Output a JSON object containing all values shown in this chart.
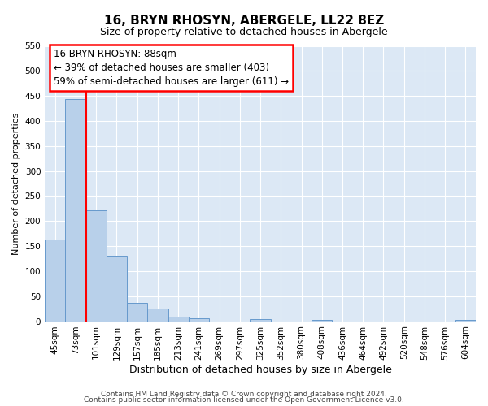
{
  "title": "16, BRYN RHOSYN, ABERGELE, LL22 8EZ",
  "subtitle": "Size of property relative to detached houses in Abergele",
  "xlabel": "Distribution of detached houses by size in Abergele",
  "ylabel": "Number of detached properties",
  "bins": [
    "45sqm",
    "73sqm",
    "101sqm",
    "129sqm",
    "157sqm",
    "185sqm",
    "213sqm",
    "241sqm",
    "269sqm",
    "297sqm",
    "325sqm",
    "352sqm",
    "380sqm",
    "408sqm",
    "436sqm",
    "464sqm",
    "492sqm",
    "520sqm",
    "548sqm",
    "576sqm",
    "604sqm"
  ],
  "values": [
    163,
    443,
    221,
    130,
    37,
    26,
    9,
    6,
    0,
    0,
    4,
    0,
    0,
    3,
    0,
    0,
    0,
    0,
    0,
    0,
    3
  ],
  "bar_color": "#b8d0ea",
  "bar_edge_color": "#6699cc",
  "ylim": [
    0,
    550
  ],
  "yticks": [
    0,
    50,
    100,
    150,
    200,
    250,
    300,
    350,
    400,
    450,
    500,
    550
  ],
  "annotation_title": "16 BRYN RHOSYN: 88sqm",
  "annotation_line1": "← 39% of detached houses are smaller (403)",
  "annotation_line2": "59% of semi-detached houses are larger (611) →",
  "footer1": "Contains HM Land Registry data © Crown copyright and database right 2024.",
  "footer2": "Contains public sector information licensed under the Open Government Licence v3.0.",
  "bg_color": "#ffffff",
  "plot_bg_color": "#dce8f5",
  "grid_color": "#ffffff",
  "title_fontsize": 11,
  "subtitle_fontsize": 9,
  "xlabel_fontsize": 9,
  "ylabel_fontsize": 8,
  "tick_fontsize": 7.5,
  "footer_fontsize": 6.5
}
